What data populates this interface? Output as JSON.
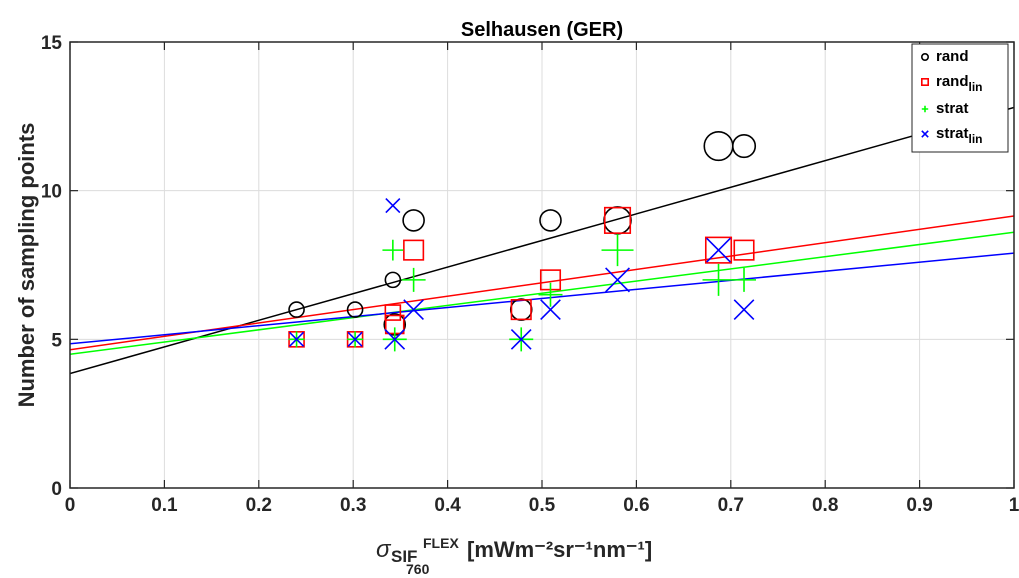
{
  "chart_data": {
    "type": "scatter",
    "title": "Selhausen (GER)",
    "xlabel": {
      "sigma": "σ",
      "base": "SIF",
      "sup": "FLEX",
      "sub": "760",
      "units": "[mWm⁻²sr⁻¹nm⁻¹]"
    },
    "ylabel": "Number of sampling points",
    "xlim": [
      0,
      1
    ],
    "ylim": [
      0,
      15
    ],
    "xticks": [
      0,
      0.1,
      0.2,
      0.3,
      0.4,
      0.5,
      0.6,
      0.7,
      0.8,
      0.9,
      1
    ],
    "xtick_labels": [
      "0",
      "0.1",
      "0.2",
      "0.3",
      "0.4",
      "0.5",
      "0.6",
      "0.7",
      "0.8",
      "0.9",
      "1"
    ],
    "yticks": [
      0,
      5,
      10,
      15
    ],
    "ytick_labels": [
      "0",
      "5",
      "10",
      "15"
    ],
    "grid": true,
    "legend_position": "top-right",
    "series": [
      {
        "name": "rand",
        "name_sub": "",
        "marker": "circle",
        "color": "#000000",
        "points": [
          {
            "x": 0.24,
            "y": 6,
            "size": 1
          },
          {
            "x": 0.302,
            "y": 6,
            "size": 1
          },
          {
            "x": 0.342,
            "y": 7,
            "size": 1
          },
          {
            "x": 0.344,
            "y": 5.5,
            "size": 1.4
          },
          {
            "x": 0.364,
            "y": 9,
            "size": 1.4
          },
          {
            "x": 0.478,
            "y": 6,
            "size": 1.4
          },
          {
            "x": 0.509,
            "y": 9,
            "size": 1.4
          },
          {
            "x": 0.58,
            "y": 9,
            "size": 1.8
          },
          {
            "x": 0.687,
            "y": 11.5,
            "size": 1.9
          },
          {
            "x": 0.714,
            "y": 11.5,
            "size": 1.5
          }
        ],
        "fit": [
          3.85,
          8.95
        ]
      },
      {
        "name": "rand",
        "name_sub": "lin",
        "marker": "square",
        "color": "#ff0000",
        "points": [
          {
            "x": 0.24,
            "y": 5,
            "size": 1
          },
          {
            "x": 0.302,
            "y": 5,
            "size": 1
          },
          {
            "x": 0.342,
            "y": 5.9,
            "size": 1
          },
          {
            "x": 0.344,
            "y": 5.5,
            "size": 1.2
          },
          {
            "x": 0.364,
            "y": 8,
            "size": 1.3
          },
          {
            "x": 0.478,
            "y": 6,
            "size": 1.3
          },
          {
            "x": 0.509,
            "y": 7,
            "size": 1.3
          },
          {
            "x": 0.58,
            "y": 9,
            "size": 1.7
          },
          {
            "x": 0.687,
            "y": 8,
            "size": 1.7
          },
          {
            "x": 0.714,
            "y": 8,
            "size": 1.3
          }
        ],
        "fit": [
          4.65,
          4.5
        ]
      },
      {
        "name": "strat",
        "name_sub": "",
        "marker": "plus",
        "color": "#00ff00",
        "points": [
          {
            "x": 0.24,
            "y": 5,
            "size": 1
          },
          {
            "x": 0.302,
            "y": 5,
            "size": 1
          },
          {
            "x": 0.342,
            "y": 8,
            "size": 1.3
          },
          {
            "x": 0.344,
            "y": 5,
            "size": 1.5
          },
          {
            "x": 0.364,
            "y": 7,
            "size": 1.5
          },
          {
            "x": 0.478,
            "y": 5,
            "size": 1.5
          },
          {
            "x": 0.509,
            "y": 6.5,
            "size": 1.5
          },
          {
            "x": 0.58,
            "y": 8,
            "size": 2
          },
          {
            "x": 0.687,
            "y": 7,
            "size": 2
          },
          {
            "x": 0.714,
            "y": 7,
            "size": 1.5
          }
        ],
        "fit": [
          4.5,
          4.1
        ]
      },
      {
        "name": "strat",
        "name_sub": "lin",
        "marker": "x",
        "color": "#0000ff",
        "points": [
          {
            "x": 0.24,
            "y": 5,
            "size": 1
          },
          {
            "x": 0.302,
            "y": 5,
            "size": 1
          },
          {
            "x": 0.342,
            "y": 9.5,
            "size": 1
          },
          {
            "x": 0.344,
            "y": 5,
            "size": 1.4
          },
          {
            "x": 0.364,
            "y": 6,
            "size": 1.4
          },
          {
            "x": 0.478,
            "y": 5,
            "size": 1.4
          },
          {
            "x": 0.509,
            "y": 6,
            "size": 1.4
          },
          {
            "x": 0.58,
            "y": 7,
            "size": 1.7
          },
          {
            "x": 0.687,
            "y": 8,
            "size": 1.7
          },
          {
            "x": 0.714,
            "y": 6,
            "size": 1.4
          }
        ],
        "fit": [
          4.85,
          3.05
        ]
      }
    ]
  }
}
